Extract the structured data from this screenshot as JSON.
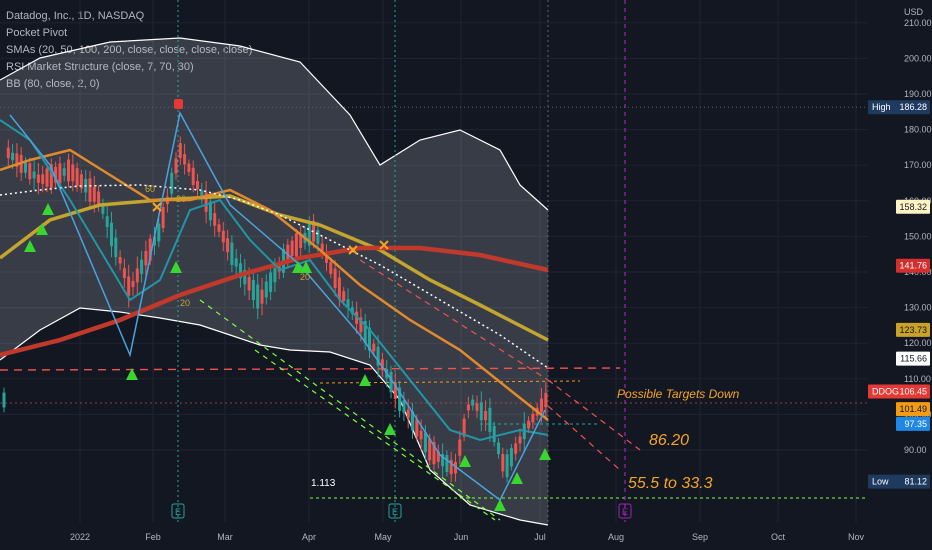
{
  "legend": {
    "title": "Datadog, Inc., 1D, NASDAQ",
    "line2": "Pocket Pivot",
    "line3": "SMAs (20, 50, 100, 200, close, close, close, close)",
    "line4": "RSI Market Structure (close, 7, 70, 30)",
    "line5": "BB (80, close, 2, 0)"
  },
  "annotations": {
    "possible_targets": "Possible Targets Down",
    "target1": "86.20",
    "target2": "55.5 to 33.3",
    "ratio": "1.113"
  },
  "chart_data": {
    "type": "candlestick",
    "currency_label": "USD",
    "x_ticks": [
      "2022",
      "Feb",
      "Mar",
      "Apr",
      "May",
      "Jun",
      "Jul",
      "Aug",
      "Sep",
      "Oct",
      "Nov"
    ],
    "y_ticks": [
      90,
      100,
      110,
      120,
      130,
      140,
      150,
      160,
      170,
      180,
      190,
      200,
      210
    ],
    "price_tags": [
      {
        "label": "High",
        "value": "186.28",
        "color": "#1e3a5f",
        "text": "#ffffff"
      },
      {
        "label": "",
        "value": "158.32",
        "color": "#fff3c4",
        "text": "#131722"
      },
      {
        "label": "",
        "value": "141.76",
        "color": "#d32f2f",
        "text": "#ffffff"
      },
      {
        "label": "",
        "value": "123.73",
        "color": "#c9a227",
        "text": "#131722"
      },
      {
        "label": "",
        "value": "115.66",
        "color": "#ffffff",
        "text": "#131722"
      },
      {
        "label": "DDOG",
        "value": "106.45",
        "color": "#e53935",
        "text": "#ffffff"
      },
      {
        "label": "",
        "value": "101.49",
        "color": "#f39c12",
        "text": "#131722"
      },
      {
        "label": "",
        "value": "97.35",
        "color": "#1e88e5",
        "text": "#ffffff"
      },
      {
        "label": "Low",
        "value": "81.12",
        "color": "#1e3a5f",
        "text": "#ffffff"
      }
    ],
    "pivot_labels": [
      "60",
      "20",
      "20",
      "20"
    ],
    "colors": {
      "up": "#26a69a",
      "down": "#ef5350",
      "sma20": "#2196a6",
      "sma50": "#e08a2d",
      "sma100": "#c4a62e",
      "sma200": "#c0392b",
      "bb": "#ffffff",
      "zigzag": "#4aa3df",
      "marker": "#39d62f",
      "target_line": "#ef5350",
      "low_line": "#7cff3a",
      "earnings_line": "#26a69a",
      "future_line": "#9c27b0"
    }
  }
}
